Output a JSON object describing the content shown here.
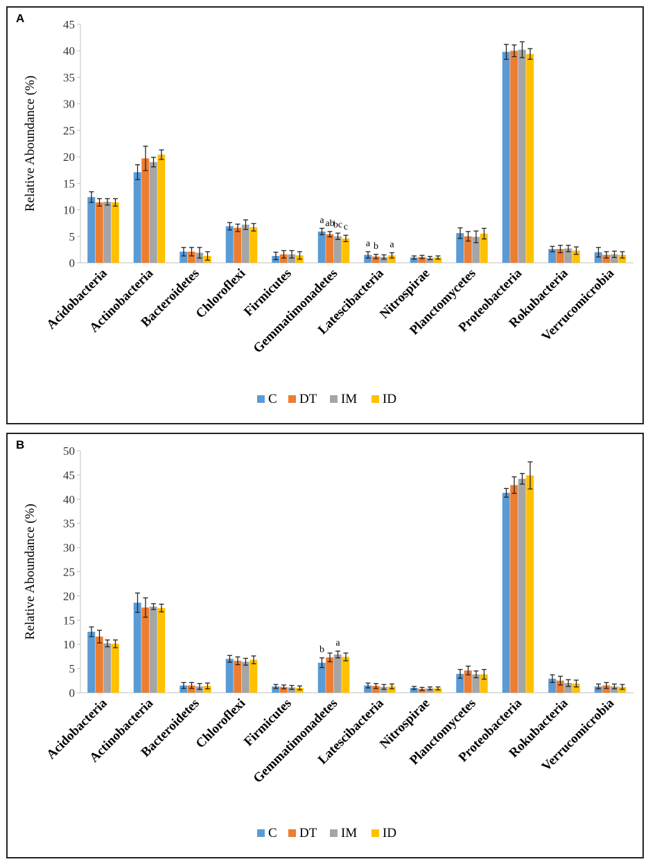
{
  "colors": {
    "C": "#5b9bd5",
    "DT": "#ed7d31",
    "IM": "#a5a5a5",
    "ID": "#ffc000"
  },
  "chart_data": [
    {
      "panel": "A",
      "type": "bar",
      "ylabel": "Relative Aboundance (%)",
      "ylim": [
        0,
        45
      ],
      "yticks": [
        0,
        5,
        10,
        15,
        20,
        25,
        30,
        35,
        40,
        45
      ],
      "categories": [
        "Acidobacteria",
        "Actinobacteria",
        "Bacteroidetes",
        "Chloroflexi",
        "Firmicutes",
        "Gemmatimonadetes",
        "Latescibacteria",
        "Nitrospirae",
        "Planctomycetes",
        "Proteobacteria",
        "Rokubacteria",
        "Verrucomicrobia"
      ],
      "series": [
        {
          "name": "C",
          "values": [
            12.4,
            17.1,
            2.1,
            6.9,
            1.3,
            5.9,
            1.5,
            1.0,
            5.6,
            39.8,
            2.6,
            2.0
          ],
          "errors": [
            1.0,
            1.4,
            0.8,
            0.7,
            0.7,
            0.6,
            0.6,
            0.3,
            1.0,
            1.4,
            0.5,
            0.9
          ]
        },
        {
          "name": "DT",
          "values": [
            11.4,
            19.7,
            2.1,
            6.6,
            1.6,
            5.4,
            1.2,
            1.1,
            5.0,
            40.0,
            2.6,
            1.5
          ],
          "errors": [
            0.7,
            2.3,
            0.8,
            0.7,
            0.7,
            0.5,
            0.4,
            0.3,
            0.9,
            1.1,
            0.7,
            0.6
          ]
        },
        {
          "name": "IM",
          "values": [
            11.5,
            19.0,
            1.9,
            7.2,
            1.6,
            5.0,
            1.1,
            0.9,
            4.9,
            40.2,
            2.7,
            1.6
          ],
          "errors": [
            0.6,
            0.9,
            1.0,
            0.9,
            0.7,
            0.6,
            0.4,
            0.3,
            1.1,
            1.5,
            0.6,
            0.6
          ]
        },
        {
          "name": "ID",
          "values": [
            11.4,
            20.4,
            1.3,
            6.7,
            1.4,
            4.6,
            1.4,
            1.0,
            5.5,
            39.4,
            2.3,
            1.5
          ],
          "errors": [
            0.7,
            0.9,
            0.8,
            0.7,
            0.7,
            0.6,
            0.5,
            0.3,
            1.0,
            1.0,
            0.7,
            0.6
          ]
        }
      ],
      "annotations": [
        {
          "category": "Gemmatimonadetes",
          "series": "C",
          "text": "a"
        },
        {
          "category": "Gemmatimonadetes",
          "series": "DT",
          "text": "ab"
        },
        {
          "category": "Gemmatimonadetes",
          "series": "IM",
          "text": "bc"
        },
        {
          "category": "Gemmatimonadetes",
          "series": "ID",
          "text": "c"
        },
        {
          "category": "Latescibacteria",
          "series": "C",
          "text": "a"
        },
        {
          "category": "Latescibacteria",
          "series": "DT",
          "text": "b"
        },
        {
          "category": "Latescibacteria",
          "series": "ID",
          "text": "a"
        }
      ],
      "legend": [
        "C",
        "DT",
        "IM",
        "ID"
      ]
    },
    {
      "panel": "B",
      "type": "bar",
      "ylabel": "Relative Aboundance (%)",
      "ylim": [
        0,
        50
      ],
      "yticks": [
        0,
        5,
        10,
        15,
        20,
        25,
        30,
        35,
        40,
        45,
        50
      ],
      "categories": [
        "Acidobacteria",
        "Actinobacteria",
        "Bacteroidetes",
        "Chloroflexi",
        "Firmicutes",
        "Gemmatimonadetes",
        "Latescibacteria",
        "Nitrospirae",
        "Planctomycetes",
        "Proteobacteria",
        "Rokubacteria",
        "Verrucomicrobia"
      ],
      "series": [
        {
          "name": "C",
          "values": [
            12.6,
            18.6,
            1.5,
            7.0,
            1.3,
            6.2,
            1.5,
            1.0,
            3.9,
            41.3,
            2.9,
            1.3
          ],
          "errors": [
            1.0,
            2.0,
            0.6,
            0.7,
            0.4,
            1.0,
            0.5,
            0.3,
            0.9,
            0.9,
            0.8,
            0.5
          ]
        },
        {
          "name": "DT",
          "values": [
            11.6,
            17.6,
            1.5,
            6.6,
            1.2,
            7.3,
            1.4,
            0.8,
            4.6,
            42.9,
            2.5,
            1.5
          ],
          "errors": [
            1.3,
            2.0,
            0.6,
            0.8,
            0.4,
            0.9,
            0.5,
            0.3,
            0.9,
            1.7,
            0.9,
            0.6
          ]
        },
        {
          "name": "IM",
          "values": [
            10.2,
            17.8,
            1.3,
            6.4,
            1.1,
            7.9,
            1.2,
            0.9,
            3.8,
            44.2,
            2.0,
            1.3
          ],
          "errors": [
            0.7,
            0.6,
            0.6,
            0.7,
            0.4,
            0.7,
            0.5,
            0.3,
            0.7,
            1.1,
            0.7,
            0.5
          ]
        },
        {
          "name": "ID",
          "values": [
            10.1,
            17.5,
            1.4,
            6.8,
            1.0,
            7.4,
            1.3,
            0.9,
            3.8,
            44.9,
            1.9,
            1.2
          ],
          "errors": [
            0.8,
            0.8,
            0.6,
            0.8,
            0.4,
            0.8,
            0.5,
            0.3,
            1.0,
            2.8,
            0.7,
            0.5
          ]
        }
      ],
      "annotations": [
        {
          "category": "Gemmatimonadetes",
          "series": "C",
          "text": "b"
        },
        {
          "category": "Gemmatimonadetes",
          "series": "IM",
          "text": "a"
        }
      ],
      "legend": [
        "C",
        "DT",
        "IM",
        "ID"
      ]
    }
  ]
}
